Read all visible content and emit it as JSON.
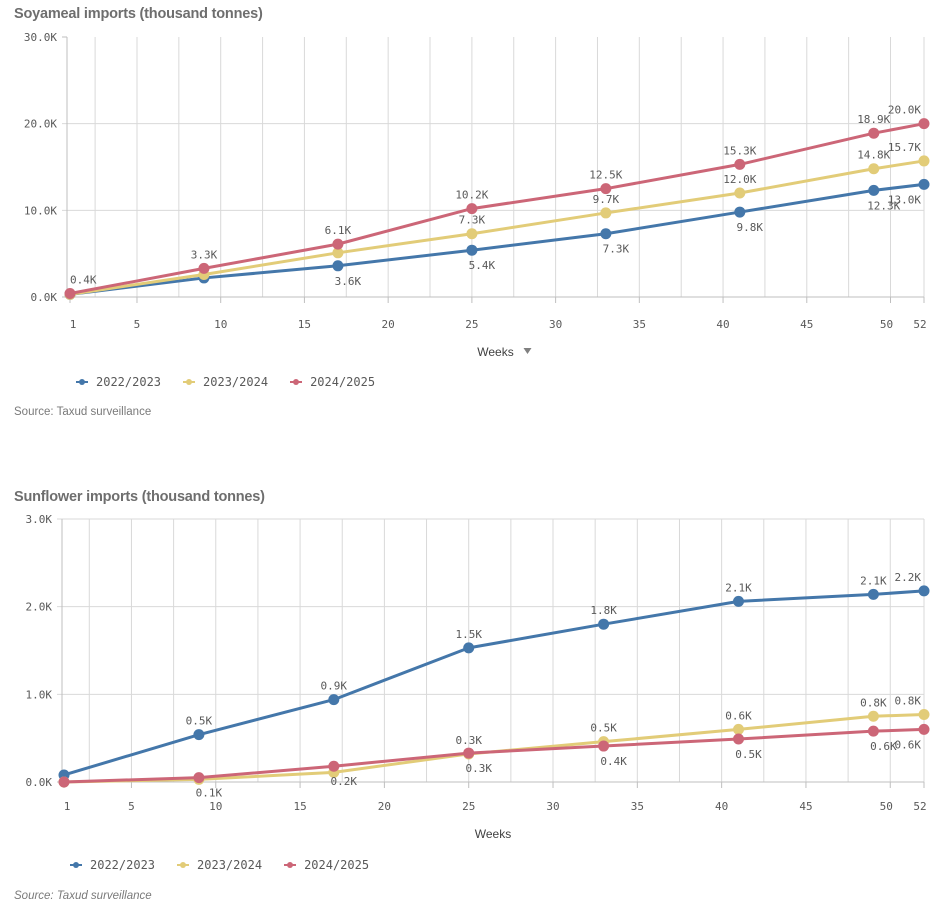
{
  "colors": {
    "series": [
      "#4477aa",
      "#e2cc78",
      "#cc6677"
    ],
    "grid": "#d9d9d9",
    "axis": "#bfbfbf"
  },
  "chart_data": [
    {
      "type": "line",
      "title": "Soyameal imports (thousand tonnes)",
      "xlabel": "Weeks",
      "xlabel_has_dropdown": true,
      "ylabel": "",
      "x": [
        1,
        9,
        17,
        25,
        33,
        41,
        49,
        52
      ],
      "xlim": [
        1,
        52
      ],
      "xticks": [
        "1",
        "5",
        "10",
        "15",
        "20",
        "25",
        "30",
        "35",
        "40",
        "45",
        "50",
        "52"
      ],
      "xtick_values": [
        1,
        5,
        10,
        15,
        20,
        25,
        30,
        35,
        40,
        45,
        50,
        52
      ],
      "ylim": [
        0,
        30
      ],
      "yticks": [
        "0.0K",
        "10.0K",
        "20.0K",
        "30.0K"
      ],
      "ytick_values": [
        0,
        10,
        20,
        30
      ],
      "grid": true,
      "legend_position": "bottom-left",
      "series": [
        {
          "name": "2022/2023",
          "values": [
            0.3,
            2.2,
            3.6,
            5.4,
            7.3,
            9.8,
            12.3,
            13.0
          ],
          "labels": [
            "",
            "",
            "3.6K",
            "5.4K",
            "7.3K",
            "9.8K",
            "12.3K",
            "13.0K"
          ],
          "label_pos": "below"
        },
        {
          "name": "2023/2024",
          "values": [
            0.3,
            2.6,
            5.1,
            7.3,
            9.7,
            12.0,
            14.8,
            15.7
          ],
          "labels": [
            "",
            "",
            "",
            "7.3K",
            "9.7K",
            "12.0K",
            "14.8K",
            "15.7K"
          ],
          "label_pos": "above"
        },
        {
          "name": "2024/2025",
          "values": [
            0.4,
            3.3,
            6.1,
            10.2,
            12.5,
            15.3,
            18.9,
            20.0
          ],
          "labels": [
            "0.4K",
            "3.3K",
            "6.1K",
            "10.2K",
            "12.5K",
            "15.3K",
            "18.9K",
            "20.0K"
          ],
          "label_pos": "above"
        }
      ],
      "source": "Source: Taxud surveillance"
    },
    {
      "type": "line",
      "title": "Sunflower imports (thousand tonnes)",
      "xlabel": "Weeks",
      "xlabel_has_dropdown": false,
      "ylabel": "",
      "x": [
        1,
        9,
        17,
        25,
        33,
        41,
        49,
        52
      ],
      "xlim": [
        1,
        52
      ],
      "xticks": [
        "1",
        "5",
        "10",
        "15",
        "20",
        "25",
        "30",
        "35",
        "40",
        "45",
        "50",
        "52"
      ],
      "xtick_values": [
        1,
        5,
        10,
        15,
        20,
        25,
        30,
        35,
        40,
        45,
        50,
        52
      ],
      "ylim": [
        0,
        3
      ],
      "yticks": [
        "0.0K",
        "1.0K",
        "2.0K",
        "3.0K"
      ],
      "ytick_values": [
        0,
        1,
        2,
        3
      ],
      "grid": true,
      "legend_position": "bottom-left",
      "series": [
        {
          "name": "2022/2023",
          "values": [
            0.08,
            0.54,
            0.94,
            1.53,
            1.8,
            2.06,
            2.14,
            2.18
          ],
          "labels": [
            "",
            "0.5K",
            "0.9K",
            "1.5K",
            "1.8K",
            "2.1K",
            "2.1K",
            "2.2K"
          ],
          "label_pos": "above"
        },
        {
          "name": "2023/2024",
          "values": [
            0.0,
            0.03,
            0.11,
            0.32,
            0.46,
            0.6,
            0.75,
            0.77
          ],
          "labels": [
            "",
            "",
            "",
            "0.3K",
            "0.5K",
            "0.6K",
            "0.8K",
            "0.8K"
          ],
          "label_pos": "above"
        },
        {
          "name": "2024/2025",
          "values": [
            0.0,
            0.05,
            0.18,
            0.33,
            0.41,
            0.49,
            0.58,
            0.6
          ],
          "labels": [
            "",
            "0.1K",
            "0.2K",
            "0.3K",
            "0.4K",
            "0.5K",
            "0.6K",
            "0.6K"
          ],
          "label_pos": "below"
        }
      ],
      "source": "Source: Taxud surveillance"
    }
  ]
}
